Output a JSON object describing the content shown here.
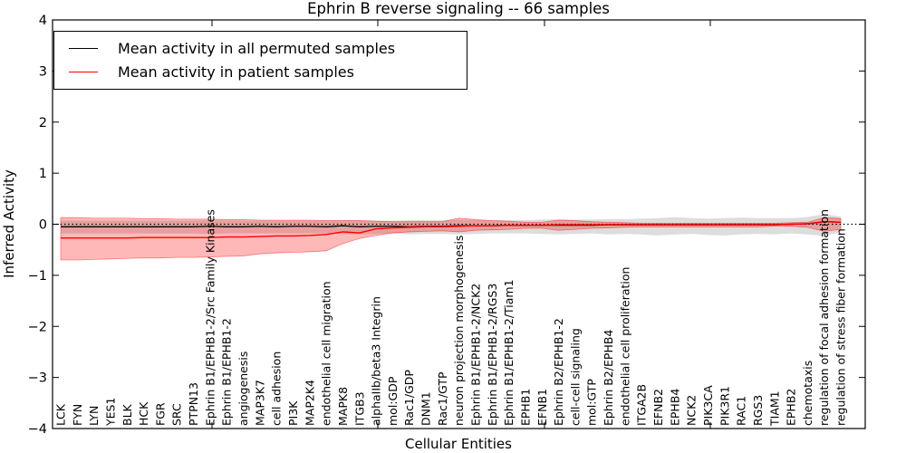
{
  "figure": {
    "title": "Ephrin B reverse signaling -- 66 samples",
    "xlabel": "Cellular Entities",
    "ylabel": "Inferred Activity"
  },
  "legend": {
    "items": [
      {
        "label": "Mean activity in all permuted samples",
        "color": "#000000"
      },
      {
        "label": "Mean activity in patient samples",
        "color": "#ff0000"
      }
    ]
  },
  "chart_data": {
    "type": "line",
    "title": "Ephrin B reverse signaling -- 66 samples",
    "xlabel": "Cellular Entities",
    "ylabel": "Inferred Activity",
    "ylim": [
      -4,
      4
    ],
    "ytick_values": [
      4,
      3,
      2,
      1,
      0,
      -1,
      -2,
      -3,
      -4
    ],
    "ytick_labels": [
      "4",
      "3",
      "2",
      "1",
      "0",
      "−1",
      "−2",
      "−3",
      "−4"
    ],
    "grid": false,
    "legend_position": "upper left",
    "categories": [
      "LCK",
      "FYN",
      "LYN",
      "YES1",
      "BLK",
      "HCK",
      "FGR",
      "SRC",
      "PTPN13",
      "Ephrin B1/EPHB1-2/Src Family Kinases",
      "Ephrin B1/EPHB1-2",
      "angiogenesis",
      "MAP3K7",
      "cell adhesion",
      "PI3K",
      "MAP2K4",
      "endothelial cell migration",
      "MAPK8",
      "ITGB3",
      "alphaIIb/beta3 Integrin",
      "mol:GDP",
      "Rac1/GDP",
      "DNM1",
      "Rac1/GTP",
      "neuron projection morphogenesis",
      "Ephrin B1/EPHB1-2/NCK2",
      "Ephrin B1/EPHB1-2/RGS3",
      "Ephrin B1/EPHB1-2/Tiam1",
      "EPHB1",
      "EFNB1",
      "Ephrin B2/EPHB1-2",
      "cell-cell signaling",
      "mol:GTP",
      "Ephrin B2/EPHB4",
      "endothelial cell proliferation",
      "ITGA2B",
      "EFNB2",
      "EPHB4",
      "NCK2",
      "PIK3CA",
      "PIK3R1",
      "RAC1",
      "RGS3",
      "TIAM1",
      "EPHB2",
      "chemotaxis",
      "regulation of focal adhesion formation",
      "regulation of stress fiber formation"
    ],
    "series": [
      {
        "name": "Mean activity in all permuted samples",
        "color": "#000000",
        "band_color": "#aaaaaa",
        "values": [
          -0.05,
          -0.05,
          -0.05,
          -0.05,
          -0.05,
          -0.05,
          -0.05,
          -0.05,
          -0.05,
          -0.04,
          -0.05,
          -0.05,
          -0.04,
          -0.05,
          -0.04,
          -0.04,
          -0.05,
          -0.03,
          -0.05,
          -0.04,
          -0.04,
          -0.05,
          -0.04,
          -0.04,
          -0.03,
          -0.03,
          -0.03,
          -0.02,
          -0.02,
          -0.02,
          -0.02,
          -0.02,
          -0.02,
          -0.01,
          -0.01,
          -0.01,
          -0.01,
          -0.01,
          -0.01,
          -0.01,
          -0.01,
          -0.01,
          -0.01,
          -0.01,
          0.0,
          0.01,
          0.05,
          0.04
        ],
        "band_upper": [
          0.07,
          0.07,
          0.07,
          0.07,
          0.07,
          0.07,
          0.07,
          0.07,
          0.07,
          0.08,
          0.07,
          0.07,
          0.07,
          0.07,
          0.07,
          0.07,
          0.07,
          0.08,
          0.08,
          0.07,
          0.07,
          0.08,
          0.08,
          0.08,
          0.09,
          0.08,
          0.08,
          0.08,
          0.08,
          0.09,
          0.1,
          0.09,
          0.09,
          0.1,
          0.1,
          0.11,
          0.12,
          0.14,
          0.12,
          0.11,
          0.12,
          0.13,
          0.12,
          0.12,
          0.12,
          0.14,
          0.2,
          0.15
        ],
        "band_lower": [
          -0.18,
          -0.18,
          -0.18,
          -0.18,
          -0.18,
          -0.18,
          -0.18,
          -0.18,
          -0.18,
          -0.19,
          -0.18,
          -0.18,
          -0.18,
          -0.18,
          -0.18,
          -0.18,
          -0.18,
          -0.19,
          -0.2,
          -0.19,
          -0.18,
          -0.2,
          -0.19,
          -0.19,
          -0.2,
          -0.19,
          -0.18,
          -0.18,
          -0.18,
          -0.19,
          -0.2,
          -0.19,
          -0.18,
          -0.2,
          -0.19,
          -0.2,
          -0.22,
          -0.2,
          -0.19,
          -0.21,
          -0.22,
          -0.2,
          -0.19,
          -0.2,
          -0.18,
          -0.2,
          -0.23,
          -0.15
        ]
      },
      {
        "name": "Mean activity in patient samples",
        "color": "#ff0000",
        "band_color": "#ff0000",
        "values": [
          -0.27,
          -0.27,
          -0.27,
          -0.27,
          -0.27,
          -0.26,
          -0.26,
          -0.26,
          -0.26,
          -0.26,
          -0.25,
          -0.25,
          -0.24,
          -0.23,
          -0.23,
          -0.22,
          -0.2,
          -0.15,
          -0.17,
          -0.09,
          -0.07,
          -0.06,
          -0.05,
          -0.05,
          -0.04,
          -0.03,
          -0.03,
          -0.02,
          -0.02,
          -0.02,
          -0.01,
          -0.01,
          -0.01,
          -0.01,
          -0.01,
          -0.01,
          -0.01,
          -0.01,
          -0.01,
          -0.01,
          -0.01,
          -0.01,
          -0.01,
          -0.01,
          0.0,
          0.01,
          0.05,
          0.04
        ],
        "band_upper": [
          0.13,
          0.13,
          0.12,
          0.12,
          0.12,
          0.11,
          0.11,
          0.1,
          0.1,
          0.1,
          0.09,
          0.09,
          0.08,
          0.08,
          0.08,
          0.08,
          0.07,
          0.07,
          0.07,
          0.06,
          0.05,
          0.05,
          0.05,
          0.05,
          0.12,
          0.09,
          0.07,
          0.06,
          0.04,
          0.04,
          0.08,
          0.07,
          0.05,
          0.04,
          0.03,
          0.02,
          0.02,
          0.02,
          0.02,
          0.02,
          0.02,
          0.02,
          0.02,
          0.02,
          0.03,
          0.04,
          0.13,
          0.11
        ],
        "band_lower": [
          -0.7,
          -0.7,
          -0.69,
          -0.68,
          -0.67,
          -0.66,
          -0.66,
          -0.65,
          -0.65,
          -0.64,
          -0.63,
          -0.62,
          -0.58,
          -0.56,
          -0.55,
          -0.54,
          -0.52,
          -0.38,
          -0.28,
          -0.22,
          -0.17,
          -0.15,
          -0.14,
          -0.13,
          -0.15,
          -0.12,
          -0.11,
          -0.1,
          -0.08,
          -0.08,
          -0.12,
          -0.1,
          -0.08,
          -0.07,
          -0.06,
          -0.05,
          -0.05,
          -0.05,
          -0.05,
          -0.05,
          -0.05,
          -0.05,
          -0.05,
          -0.04,
          -0.04,
          -0.06,
          -0.14,
          -0.1
        ]
      }
    ],
    "reference_line": {
      "y": 0,
      "color": "#000000",
      "style": "dotted"
    }
  }
}
